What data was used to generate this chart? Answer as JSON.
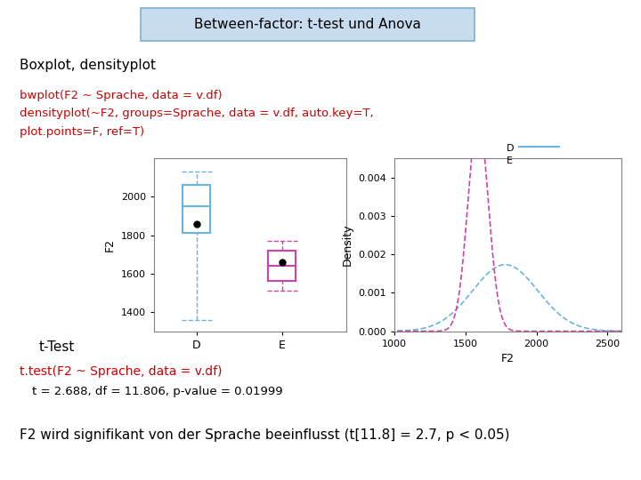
{
  "title": "Between-factor: t-test und Anova",
  "title_bg": "#c8dcf0",
  "title_border": "#7ab0d0",
  "subtitle": "Boxplot, densityplot",
  "code_line1": "bwplot(F2 ~ Sprache, data = v.df)",
  "code_line2": "densityplot(~F2, groups=Sprache, data = v.df, auto.key=T,",
  "code_line3": "plot.points=F, ref=T)",
  "legend_D_label": "D",
  "legend_E_label": "E",
  "legend_D_color": "#6ab4e0",
  "legend_E_color": "#cc44aa",
  "ttest_header": "t-Test",
  "ttest_code": "t.test(F2 ~ Sprache, data = v.df)",
  "ttest_result": "t = 2.688, df = 11.806, p-value = 0.01999",
  "conclusion": "F2 wird signifikant von der Sprache beeinflusst (t[11.8] = 2.7, p < 0.05)",
  "code_color": "#cc0000",
  "bg_color": "#ffffff",
  "box_D": {
    "median": 1950,
    "q1": 1810,
    "q3": 2060,
    "whisker_low": 1360,
    "whisker_high": 2130,
    "mean": 1860
  },
  "box_E": {
    "median": 1640,
    "q1": 1560,
    "q3": 1720,
    "whisker_low": 1510,
    "whisker_high": 1770,
    "mean": 1660
  },
  "density_D_mean": 1780,
  "density_D_std": 230,
  "density_E_mean": 1590,
  "density_E_std": 72,
  "density_xlim": [
    1000,
    2600
  ],
  "density_ylim": [
    0.0,
    0.0045
  ],
  "density_yticks": [
    0.0,
    0.001,
    0.002,
    0.003,
    0.004
  ],
  "density_xticks": [
    1000,
    1500,
    2000,
    2500
  ],
  "bwplot_ylim": [
    1300,
    2200
  ],
  "bwplot_yticks": [
    1400,
    1600,
    1800,
    2000
  ],
  "bwplot_xlabel_D": "D",
  "bwplot_xlabel_E": "E",
  "bwplot_ylabel": "F2"
}
